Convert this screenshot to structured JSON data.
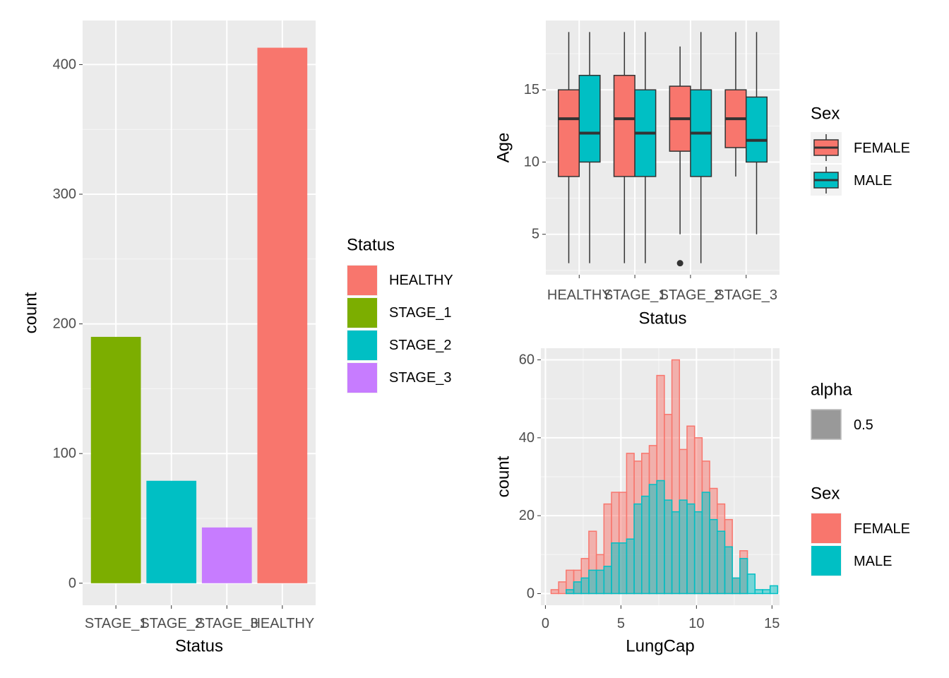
{
  "chart_data": [
    {
      "type": "bar",
      "categories": [
        "STAGE_1",
        "STAGE_2",
        "STAGE_3",
        "HEALTHY"
      ],
      "values": [
        190,
        79,
        43,
        413
      ],
      "colors": [
        "#7CAE00",
        "#00BFC4",
        "#C77CFF",
        "#F8766D"
      ],
      "xlabel": "Status",
      "ylabel": "count",
      "yticks": [
        0,
        100,
        200,
        300,
        400
      ],
      "ylim": [
        -17,
        434
      ],
      "grid": true,
      "legend": {
        "title": "Status",
        "placement": "right",
        "entries": [
          {
            "label": "HEALTHY",
            "color": "#F8766D"
          },
          {
            "label": "STAGE_1",
            "color": "#7CAE00"
          },
          {
            "label": "STAGE_2",
            "color": "#00BFC4"
          },
          {
            "label": "STAGE_3",
            "color": "#C77CFF"
          }
        ]
      }
    },
    {
      "type": "box",
      "categories": [
        "HEALTHY",
        "STAGE_1",
        "STAGE_2",
        "STAGE_3"
      ],
      "xlabel": "Status",
      "ylabel": "Age",
      "yticks": [
        5,
        10,
        15
      ],
      "ylim": [
        2.2,
        19.8
      ],
      "grid": true,
      "series": [
        {
          "name": "FEMALE",
          "color": "#F8766D",
          "boxes": [
            {
              "min": 3,
              "q1": 9,
              "median": 13,
              "q3": 15,
              "max": 19,
              "outliers": []
            },
            {
              "min": 3,
              "q1": 9,
              "median": 13,
              "q3": 16,
              "max": 19,
              "outliers": []
            },
            {
              "min": 5,
              "q1": 10.75,
              "median": 13,
              "q3": 15.25,
              "max": 18,
              "outliers": [
                3
              ]
            },
            {
              "min": 9,
              "q1": 11,
              "median": 13,
              "q3": 15,
              "max": 19,
              "outliers": []
            }
          ]
        },
        {
          "name": "MALE",
          "color": "#00BFC4",
          "boxes": [
            {
              "min": 3,
              "q1": 10,
              "median": 12,
              "q3": 16,
              "max": 19,
              "outliers": []
            },
            {
              "min": 3,
              "q1": 9,
              "median": 12,
              "q3": 15,
              "max": 19,
              "outliers": []
            },
            {
              "min": 3,
              "q1": 9,
              "median": 12,
              "q3": 15,
              "max": 19,
              "outliers": []
            },
            {
              "min": 5,
              "q1": 10,
              "median": 11.5,
              "q3": 14.5,
              "max": 19,
              "outliers": []
            }
          ]
        }
      ],
      "legend": {
        "title": "Sex",
        "placement": "right",
        "entries": [
          {
            "label": "FEMALE",
            "color": "#F8766D"
          },
          {
            "label": "MALE",
            "color": "#00BFC4"
          }
        ]
      }
    },
    {
      "type": "histogram",
      "xlabel": "LungCap",
      "ylabel": "count",
      "xticks": [
        0,
        5,
        10,
        15
      ],
      "yticks": [
        0,
        20,
        40,
        60
      ],
      "xlim": [
        -0.3,
        15.5
      ],
      "ylim": [
        -3,
        63
      ],
      "bin_start": 0.375,
      "bin_width": 0.5,
      "grid": true,
      "series": [
        {
          "name": "FEMALE",
          "color": "#F8766D",
          "counts": [
            1,
            3,
            6,
            6,
            9,
            16,
            10,
            23,
            26,
            26,
            36,
            34,
            36,
            38,
            56,
            46,
            60,
            37,
            43,
            40,
            34,
            27,
            23,
            19,
            4,
            11,
            0,
            0,
            0,
            0
          ]
        },
        {
          "name": "MALE",
          "color": "#00BFC4",
          "counts": [
            0,
            0,
            1,
            3,
            4,
            6,
            6,
            7,
            13,
            13,
            14,
            23,
            25,
            28,
            29,
            24,
            21,
            24,
            23,
            21,
            26,
            19,
            16,
            12,
            4,
            9,
            5,
            1,
            1,
            2
          ]
        }
      ],
      "legends": [
        {
          "title": "alpha",
          "placement": "right",
          "entries": [
            {
              "label": "0.5",
              "color": "#999999"
            }
          ]
        },
        {
          "title": "Sex",
          "placement": "right",
          "entries": [
            {
              "label": "FEMALE",
              "color": "#F8766D"
            },
            {
              "label": "MALE",
              "color": "#00BFC4"
            }
          ]
        }
      ]
    }
  ]
}
